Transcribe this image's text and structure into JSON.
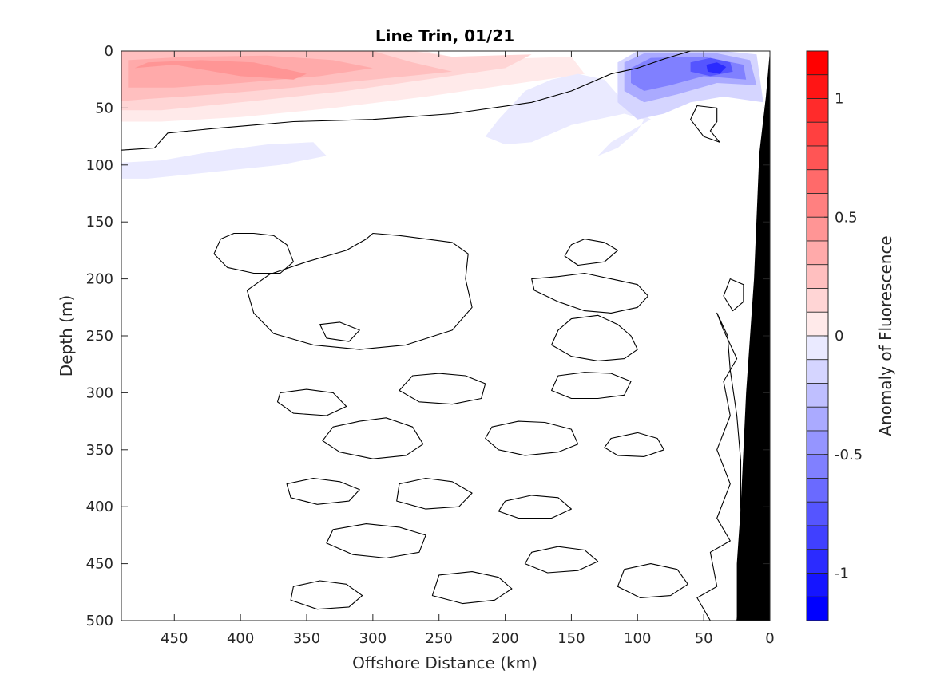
{
  "chart_data": {
    "type": "heatmap",
    "title": "Line Trin, 01/21",
    "xlabel": "Offshore Distance (km)",
    "ylabel": "Depth (m)",
    "colorbar_label": "Anomaly of Fluorescence",
    "x_reversed": true,
    "xlim": [
      490,
      0
    ],
    "ylim": [
      0,
      500
    ],
    "y_reversed": true,
    "xticks": [
      450,
      400,
      350,
      300,
      250,
      200,
      150,
      100,
      50,
      0
    ],
    "yticks": [
      0,
      50,
      100,
      150,
      200,
      250,
      300,
      350,
      400,
      450,
      500
    ],
    "clim": [
      -1.2,
      1.2
    ],
    "cticks": [
      1,
      0.5,
      0,
      -0.5,
      -1
    ],
    "n_levels": 24,
    "colors": {
      "positive_max": "#ff0000",
      "negative_max": "#0000ff",
      "zero": "#ffffff",
      "bathymetry": "#000000",
      "contour_line": "#000000"
    },
    "anomaly_regions": [
      {
        "value": 0.1,
        "polygon": [
          [
            490,
            0
          ],
          [
            260,
            0
          ],
          [
            230,
            8
          ],
          [
            150,
            5
          ],
          [
            140,
            20
          ],
          [
            200,
            30
          ],
          [
            260,
            40
          ],
          [
            330,
            50
          ],
          [
            400,
            58
          ],
          [
            460,
            62
          ],
          [
            490,
            62
          ]
        ]
      },
      {
        "value": 0.2,
        "polygon": [
          [
            490,
            0
          ],
          [
            270,
            0
          ],
          [
            240,
            5
          ],
          [
            180,
            3
          ],
          [
            200,
            15
          ],
          [
            260,
            25
          ],
          [
            320,
            35
          ],
          [
            400,
            45
          ],
          [
            460,
            52
          ],
          [
            490,
            52
          ]
        ]
      },
      {
        "value": 0.3,
        "polygon": [
          [
            490,
            0
          ],
          [
            300,
            0
          ],
          [
            270,
            10
          ],
          [
            240,
            18
          ],
          [
            300,
            25
          ],
          [
            360,
            32
          ],
          [
            420,
            38
          ],
          [
            470,
            42
          ],
          [
            490,
            44
          ]
        ]
      },
      {
        "value": 0.4,
        "polygon": [
          [
            485,
            8
          ],
          [
            440,
            5
          ],
          [
            380,
            4
          ],
          [
            330,
            8
          ],
          [
            300,
            15
          ],
          [
            340,
            22
          ],
          [
            400,
            28
          ],
          [
            450,
            32
          ],
          [
            485,
            32
          ]
        ]
      },
      {
        "value": 0.5,
        "polygon": [
          [
            480,
            15
          ],
          [
            450,
            12
          ],
          [
            420,
            18
          ],
          [
            400,
            22
          ],
          [
            360,
            25
          ],
          [
            350,
            20
          ],
          [
            390,
            10
          ],
          [
            430,
            8
          ],
          [
            470,
            10
          ]
        ]
      },
      {
        "value": -0.1,
        "polygon": [
          [
            490,
            98
          ],
          [
            460,
            96
          ],
          [
            420,
            88
          ],
          [
            380,
            82
          ],
          [
            345,
            80
          ],
          [
            335,
            92
          ],
          [
            370,
            100
          ],
          [
            420,
            106
          ],
          [
            470,
            112
          ],
          [
            490,
            112
          ]
        ]
      },
      {
        "value": -0.1,
        "polygon": [
          [
            205,
            60
          ],
          [
            185,
            35
          ],
          [
            165,
            25
          ],
          [
            145,
            20
          ],
          [
            125,
            25
          ],
          [
            110,
            45
          ],
          [
            90,
            60
          ],
          [
            120,
            80
          ],
          [
            130,
            92
          ],
          [
            115,
            85
          ],
          [
            100,
            70
          ],
          [
            95,
            60
          ],
          [
            110,
            55
          ],
          [
            150,
            65
          ],
          [
            180,
            80
          ],
          [
            200,
            82
          ],
          [
            215,
            75
          ]
        ]
      },
      {
        "value": -0.2,
        "polygon": [
          [
            115,
            10
          ],
          [
            100,
            0
          ],
          [
            35,
            0
          ],
          [
            10,
            3
          ],
          [
            5,
            45
          ],
          [
            35,
            40
          ],
          [
            60,
            45
          ],
          [
            80,
            55
          ],
          [
            100,
            60
          ],
          [
            115,
            45
          ]
        ]
      },
      {
        "value": -0.4,
        "polygon": [
          [
            110,
            10
          ],
          [
            95,
            2
          ],
          [
            40,
            2
          ],
          [
            15,
            8
          ],
          [
            10,
            30
          ],
          [
            40,
            28
          ],
          [
            70,
            38
          ],
          [
            95,
            45
          ],
          [
            110,
            35
          ]
        ]
      },
      {
        "value": -0.6,
        "polygon": [
          [
            105,
            15
          ],
          [
            90,
            6
          ],
          [
            50,
            5
          ],
          [
            20,
            12
          ],
          [
            18,
            25
          ],
          [
            50,
            22
          ],
          [
            75,
            30
          ],
          [
            95,
            35
          ],
          [
            105,
            28
          ]
        ]
      },
      {
        "value": -0.8,
        "polygon": [
          [
            60,
            10
          ],
          [
            45,
            6
          ],
          [
            30,
            10
          ],
          [
            28,
            18
          ],
          [
            45,
            22
          ],
          [
            60,
            18
          ]
        ]
      },
      {
        "value": -1.0,
        "polygon": [
          [
            48,
            12
          ],
          [
            40,
            10
          ],
          [
            33,
            14
          ],
          [
            38,
            20
          ],
          [
            47,
            18
          ]
        ]
      }
    ],
    "zero_contours": [
      [
        [
          490,
          87
        ],
        [
          465,
          85
        ],
        [
          455,
          72
        ],
        [
          420,
          68
        ],
        [
          390,
          65
        ],
        [
          360,
          62
        ],
        [
          300,
          60
        ],
        [
          240,
          55
        ],
        [
          180,
          45
        ],
        [
          150,
          35
        ],
        [
          120,
          20
        ],
        [
          100,
          15
        ],
        [
          80,
          7
        ],
        [
          60,
          0
        ]
      ],
      [
        [
          40,
          50
        ],
        [
          55,
          48
        ],
        [
          60,
          60
        ],
        [
          50,
          75
        ],
        [
          38,
          80
        ],
        [
          45,
          70
        ],
        [
          40,
          62
        ]
      ],
      [
        [
          405,
          160
        ],
        [
          390,
          160
        ],
        [
          375,
          162
        ],
        [
          365,
          170
        ],
        [
          360,
          185
        ],
        [
          370,
          195
        ],
        [
          390,
          195
        ],
        [
          410,
          190
        ],
        [
          420,
          178
        ],
        [
          415,
          165
        ]
      ],
      [
        [
          300,
          160
        ],
        [
          280,
          162
        ],
        [
          260,
          165
        ],
        [
          240,
          168
        ],
        [
          228,
          178
        ],
        [
          230,
          200
        ],
        [
          225,
          225
        ],
        [
          240,
          245
        ],
        [
          275,
          258
        ],
        [
          310,
          262
        ],
        [
          345,
          258
        ],
        [
          375,
          248
        ],
        [
          390,
          230
        ],
        [
          395,
          210
        ],
        [
          378,
          196
        ],
        [
          350,
          185
        ],
        [
          320,
          175
        ],
        [
          305,
          165
        ]
      ],
      [
        [
          150,
          170
        ],
        [
          140,
          165
        ],
        [
          125,
          168
        ],
        [
          115,
          175
        ],
        [
          125,
          185
        ],
        [
          145,
          188
        ],
        [
          155,
          180
        ]
      ],
      [
        [
          180,
          200
        ],
        [
          160,
          198
        ],
        [
          140,
          195
        ],
        [
          120,
          200
        ],
        [
          100,
          205
        ],
        [
          92,
          215
        ],
        [
          100,
          225
        ],
        [
          120,
          230
        ],
        [
          140,
          228
        ],
        [
          160,
          220
        ],
        [
          178,
          210
        ]
      ],
      [
        [
          340,
          240
        ],
        [
          325,
          238
        ],
        [
          310,
          245
        ],
        [
          318,
          255
        ],
        [
          335,
          252
        ]
      ],
      [
        [
          150,
          235
        ],
        [
          130,
          232
        ],
        [
          115,
          240
        ],
        [
          105,
          250
        ],
        [
          100,
          262
        ],
        [
          110,
          270
        ],
        [
          130,
          272
        ],
        [
          150,
          268
        ],
        [
          165,
          258
        ],
        [
          160,
          245
        ]
      ],
      [
        [
          370,
          300
        ],
        [
          350,
          297
        ],
        [
          330,
          300
        ],
        [
          320,
          312
        ],
        [
          335,
          320
        ],
        [
          360,
          318
        ],
        [
          372,
          308
        ]
      ],
      [
        [
          270,
          285
        ],
        [
          250,
          283
        ],
        [
          230,
          285
        ],
        [
          215,
          292
        ],
        [
          218,
          305
        ],
        [
          240,
          310
        ],
        [
          265,
          308
        ],
        [
          280,
          298
        ]
      ],
      [
        [
          160,
          285
        ],
        [
          140,
          282
        ],
        [
          120,
          283
        ],
        [
          105,
          290
        ],
        [
          110,
          302
        ],
        [
          130,
          305
        ],
        [
          150,
          305
        ],
        [
          165,
          298
        ]
      ],
      [
        [
          330,
          330
        ],
        [
          310,
          325
        ],
        [
          290,
          322
        ],
        [
          270,
          330
        ],
        [
          262,
          345
        ],
        [
          275,
          355
        ],
        [
          300,
          358
        ],
        [
          325,
          352
        ],
        [
          338,
          342
        ]
      ],
      [
        [
          210,
          330
        ],
        [
          190,
          325
        ],
        [
          170,
          326
        ],
        [
          150,
          332
        ],
        [
          145,
          345
        ],
        [
          160,
          352
        ],
        [
          185,
          355
        ],
        [
          205,
          350
        ],
        [
          215,
          340
        ]
      ],
      [
        [
          120,
          340
        ],
        [
          100,
          335
        ],
        [
          85,
          340
        ],
        [
          80,
          350
        ],
        [
          95,
          356
        ],
        [
          115,
          355
        ],
        [
          125,
          348
        ]
      ],
      [
        [
          365,
          380
        ],
        [
          345,
          375
        ],
        [
          325,
          378
        ],
        [
          310,
          385
        ],
        [
          318,
          395
        ],
        [
          342,
          398
        ],
        [
          362,
          392
        ]
      ],
      [
        [
          280,
          380
        ],
        [
          260,
          375
        ],
        [
          240,
          378
        ],
        [
          225,
          388
        ],
        [
          235,
          400
        ],
        [
          260,
          402
        ],
        [
          282,
          395
        ]
      ],
      [
        [
          200,
          395
        ],
        [
          180,
          390
        ],
        [
          160,
          392
        ],
        [
          150,
          402
        ],
        [
          165,
          410
        ],
        [
          190,
          410
        ],
        [
          205,
          404
        ]
      ],
      [
        [
          330,
          420
        ],
        [
          305,
          415
        ],
        [
          280,
          418
        ],
        [
          260,
          425
        ],
        [
          265,
          440
        ],
        [
          290,
          445
        ],
        [
          315,
          442
        ],
        [
          335,
          432
        ]
      ],
      [
        [
          180,
          440
        ],
        [
          160,
          435
        ],
        [
          140,
          438
        ],
        [
          130,
          448
        ],
        [
          145,
          456
        ],
        [
          168,
          458
        ],
        [
          185,
          450
        ]
      ],
      [
        [
          360,
          470
        ],
        [
          340,
          465
        ],
        [
          320,
          468
        ],
        [
          308,
          478
        ],
        [
          318,
          488
        ],
        [
          342,
          490
        ],
        [
          362,
          482
        ]
      ],
      [
        [
          250,
          460
        ],
        [
          225,
          457
        ],
        [
          205,
          462
        ],
        [
          195,
          472
        ],
        [
          208,
          482
        ],
        [
          232,
          485
        ],
        [
          255,
          478
        ]
      ],
      [
        [
          110,
          455
        ],
        [
          90,
          450
        ],
        [
          70,
          455
        ],
        [
          62,
          468
        ],
        [
          75,
          478
        ],
        [
          98,
          480
        ],
        [
          115,
          470
        ]
      ],
      [
        [
          40,
          230
        ],
        [
          32,
          250
        ],
        [
          30,
          280
        ],
        [
          25,
          320
        ],
        [
          22,
          360
        ],
        [
          22,
          400
        ],
        [
          20,
          440
        ],
        [
          22,
          480
        ],
        [
          25,
          500
        ],
        [
          45,
          500
        ],
        [
          55,
          480
        ],
        [
          40,
          470
        ],
        [
          45,
          440
        ],
        [
          30,
          430
        ],
        [
          40,
          410
        ],
        [
          30,
          380
        ],
        [
          40,
          350
        ],
        [
          30,
          320
        ],
        [
          35,
          290
        ],
        [
          25,
          270
        ],
        [
          35,
          245
        ]
      ],
      [
        [
          30,
          200
        ],
        [
          20,
          205
        ],
        [
          20,
          220
        ],
        [
          28,
          228
        ],
        [
          35,
          215
        ]
      ]
    ],
    "bathymetry": [
      [
        0,
        0
      ],
      [
        3,
        40
      ],
      [
        8,
        90
      ],
      [
        12,
        200
      ],
      [
        18,
        300
      ],
      [
        22,
        400
      ],
      [
        25,
        450
      ],
      [
        25,
        500
      ],
      [
        0,
        500
      ]
    ]
  }
}
